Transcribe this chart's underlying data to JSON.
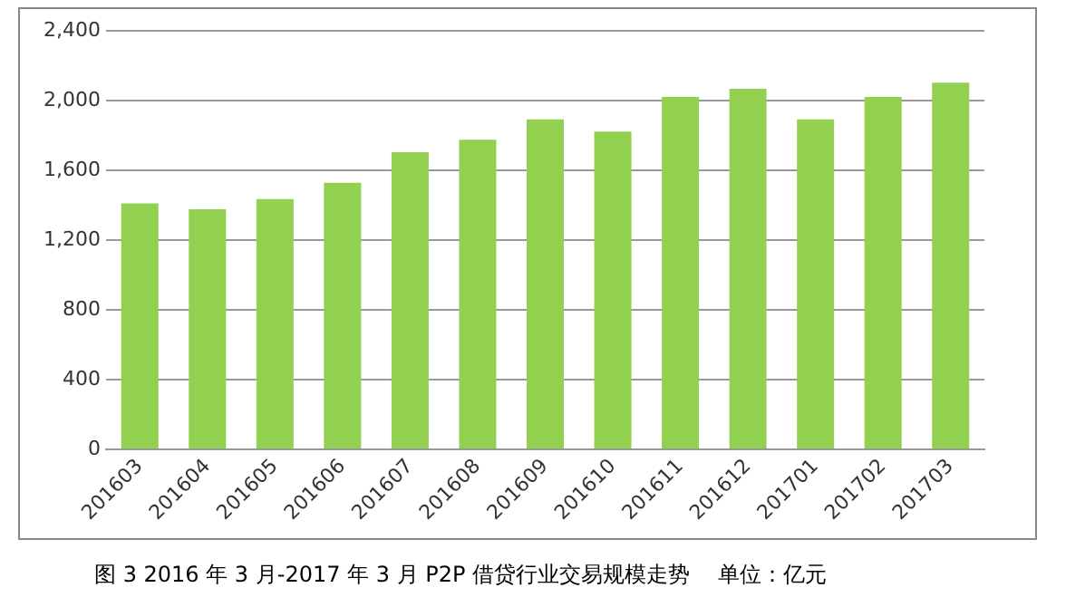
{
  "chart_data": {
    "type": "bar",
    "categories": [
      "201603",
      "201604",
      "201605",
      "201606",
      "201607",
      "201608",
      "201609",
      "201610",
      "201611",
      "201612",
      "201701",
      "201702",
      "201703"
    ],
    "values": [
      1410,
      1376,
      1435,
      1528,
      1704,
      1775,
      1892,
      1822,
      2021,
      2068,
      1892,
      2021,
      2103
    ],
    "color": "#92d050",
    "ylim": [
      0,
      2400
    ],
    "yticks": [
      {
        "value": 0,
        "label": "0"
      },
      {
        "value": 400,
        "label": "400"
      },
      {
        "value": 800,
        "label": "800"
      },
      {
        "value": 1200,
        "label": "1,200"
      },
      {
        "value": 1600,
        "label": "1,600"
      },
      {
        "value": 2000,
        "label": "2,000"
      },
      {
        "value": 2400,
        "label": "2,400"
      }
    ],
    "grid": "y",
    "legend": false,
    "annotations": [
      "图 3  2016 年 3 月-2017 年 3 月 P2P 借贷行业交易规模走势",
      "单位：亿元"
    ]
  }
}
